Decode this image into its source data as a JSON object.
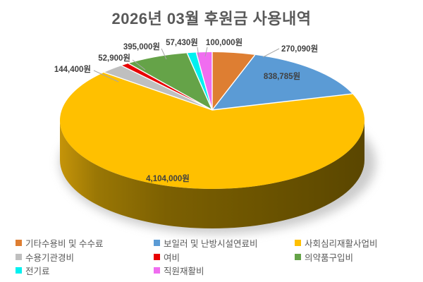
{
  "chart_data": {
    "type": "pie",
    "style": "3d",
    "title": "2026년 03월 후원금 사용내역",
    "unit": "원",
    "total_value": 5962605,
    "start_angle_deg": 0,
    "direction": "clockwise",
    "legend_position": "bottom",
    "title_color": "#595959",
    "value_label_color": "#404040",
    "leader_line_color": "#A6A6A6",
    "slices": [
      {
        "label": "기타수용비 및 수수료",
        "value": 270090,
        "value_label": "270,090원",
        "color": "#DE7E32"
      },
      {
        "label": "보일러 및 난방시설연료비",
        "value": 838785,
        "value_label": "838,785원",
        "color": "#5B9BD5"
      },
      {
        "label": "사회심리재활사업비",
        "value": 4104000,
        "value_label": "4,104,000원",
        "color": "#FFC000"
      },
      {
        "label": "수용기관경비",
        "value": 144400,
        "value_label": "144,400원",
        "color": "#BFBFBF"
      },
      {
        "label": "여비",
        "value": 52900,
        "value_label": "52,900원",
        "color": "#E80000"
      },
      {
        "label": "의약품구입비",
        "value": 395000,
        "value_label": "395,000원",
        "color": "#65A348"
      },
      {
        "label": "전기료",
        "value": 57430,
        "value_label": "57,430원",
        "color": "#00F0F0"
      },
      {
        "label": "직원재활비",
        "value": 100000,
        "value_label": "100,000원",
        "color": "#F06DF0"
      }
    ]
  }
}
